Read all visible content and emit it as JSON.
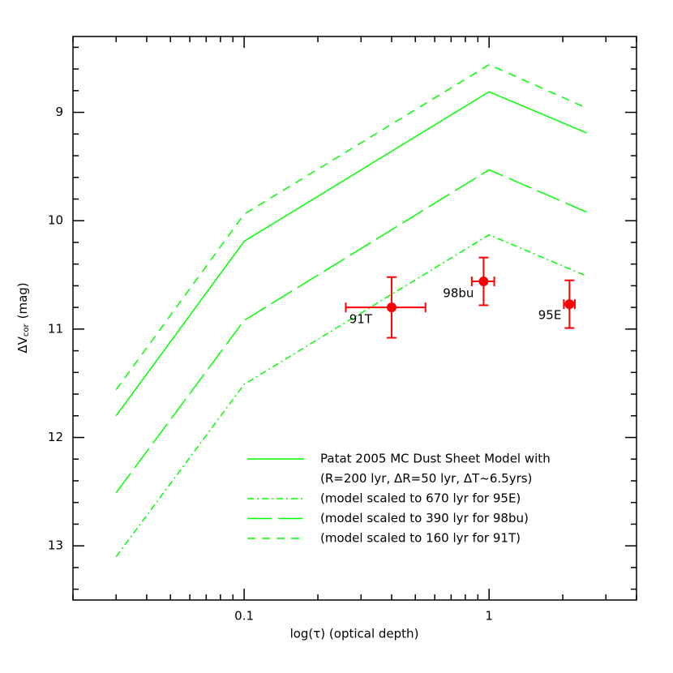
{
  "chart_data": {
    "type": "line",
    "x_label": "log(τ) (optical depth)",
    "y_label": "ΔV",
    "y_label_sub": "cor",
    "y_label_unit": "(mag)",
    "xlog": true,
    "xlim": [
      0.02,
      4
    ],
    "ylim": [
      8.3,
      13.5
    ],
    "y_inverted": true,
    "xticks": [
      0.1,
      1
    ],
    "x_minor_ticks": [
      0.02,
      0.03,
      0.04,
      0.05,
      0.06,
      0.07,
      0.08,
      0.09,
      0.2,
      0.3,
      0.4,
      0.5,
      0.6,
      0.7,
      0.8,
      0.9,
      2,
      3,
      4
    ],
    "yticks": [
      9,
      10,
      11,
      12,
      13
    ],
    "y_minor_ticks": [
      8.4,
      8.6,
      8.8,
      9.2,
      9.4,
      9.6,
      9.8,
      10.2,
      10.4,
      10.6,
      10.8,
      11.2,
      11.4,
      11.6,
      11.8,
      12.2,
      12.4,
      12.6,
      12.8,
      13.2,
      13.4
    ],
    "x": [
      0.03,
      0.1,
      1,
      2.5
    ],
    "series": [
      {
        "name": "Patat 2005 MC Dust Sheet Model with",
        "color": "#00ff00",
        "dash": "solid",
        "values": [
          11.8,
          10.19,
          8.81,
          9.19
        ]
      },
      {
        "name": "(model scaled to 670 lyr for 95E)",
        "color": "#00ff00",
        "dash": "dashdot",
        "values": [
          13.1,
          11.51,
          10.13,
          10.51
        ]
      },
      {
        "name": "(model scaled to 390 lyr for 98bu)",
        "color": "#00ff00",
        "dash": "longdash",
        "values": [
          12.51,
          10.92,
          9.53,
          9.92
        ]
      },
      {
        "name": "(model scaled to 160 lyr for 91T)",
        "color": "#00ff00",
        "dash": "dashed",
        "values": [
          11.56,
          9.94,
          8.56,
          8.96
        ]
      }
    ],
    "legend_subtitle": "(R=200 lyr, ΔR=50 lyr, ΔT~6.5yrs)",
    "points": {
      "color": "#ff0000",
      "labels": [
        "91T",
        "98bu",
        "95E"
      ],
      "x": [
        0.4,
        0.95,
        2.13
      ],
      "y": [
        10.8,
        10.56,
        10.77
      ],
      "x_low": [
        0.26,
        0.85,
        2.02
      ],
      "x_high": [
        0.55,
        1.05,
        2.24
      ],
      "y_low": [
        10.52,
        10.34,
        10.55
      ],
      "y_high": [
        11.08,
        10.78,
        10.99
      ]
    }
  }
}
